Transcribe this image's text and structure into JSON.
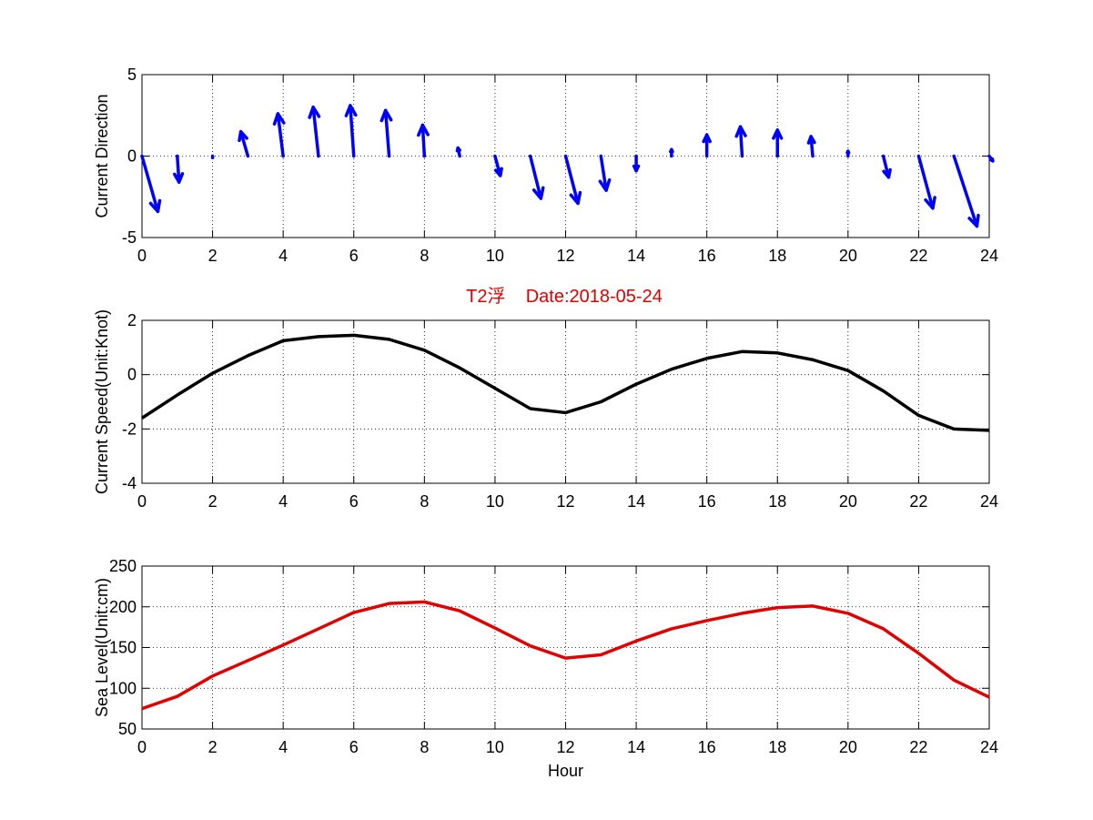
{
  "figure": {
    "title": "T2浮    Date:2018-05-24",
    "title_color": "#e00000",
    "background": "#ffffff"
  },
  "chart_data": [
    {
      "type": "quiver",
      "name": "current-direction",
      "title": "",
      "xlabel": "",
      "ylabel": "Current Direction",
      "xlim": [
        0,
        24
      ],
      "ylim": [
        -5,
        5
      ],
      "xticks": [
        "0",
        "2",
        "4",
        "6",
        "8",
        "10",
        "12",
        "14",
        "16",
        "18",
        "20",
        "22",
        "24"
      ],
      "yticks": [
        "-5",
        "0",
        "5"
      ],
      "grid": true,
      "color": "#0000ff",
      "x": [
        0,
        1,
        2,
        3,
        4,
        5,
        6,
        7,
        8,
        9,
        10,
        11,
        12,
        13,
        14,
        15,
        16,
        17,
        18,
        19,
        20,
        21,
        22,
        23,
        24
      ],
      "u": [
        0.45,
        0.05,
        0.0,
        -0.2,
        -0.15,
        -0.15,
        -0.1,
        -0.1,
        -0.05,
        -0.05,
        0.15,
        0.3,
        0.35,
        0.15,
        0.0,
        0.0,
        0.0,
        -0.05,
        0.0,
        -0.05,
        0.0,
        0.15,
        0.4,
        0.65,
        0.1
      ],
      "v": [
        -3.4,
        -1.6,
        -0.1,
        1.5,
        2.6,
        3.0,
        3.1,
        2.8,
        1.9,
        0.5,
        -1.2,
        -2.6,
        -2.9,
        -2.1,
        -0.9,
        0.4,
        1.3,
        1.8,
        1.6,
        1.2,
        0.3,
        -1.3,
        -3.2,
        -4.3,
        -0.3
      ]
    },
    {
      "type": "line",
      "name": "current-speed",
      "title": "",
      "xlabel": "",
      "ylabel": "Current Speed(Unit:Knot)",
      "xlim": [
        0,
        24
      ],
      "ylim": [
        -4,
        2
      ],
      "xticks": [
        "0",
        "2",
        "4",
        "6",
        "8",
        "10",
        "12",
        "14",
        "16",
        "18",
        "20",
        "22",
        "24"
      ],
      "yticks": [
        "-4",
        "-2",
        "0",
        "2"
      ],
      "grid": true,
      "color": "#000000",
      "series": [
        {
          "name": "speed",
          "x": [
            0,
            1,
            2,
            3,
            4,
            5,
            6,
            7,
            8,
            9,
            10,
            11,
            12,
            13,
            14,
            15,
            16,
            17,
            18,
            19,
            20,
            21,
            22,
            23,
            24
          ],
          "values": [
            -1.6,
            -0.75,
            0.05,
            0.7,
            1.25,
            1.4,
            1.45,
            1.3,
            0.9,
            0.25,
            -0.5,
            -1.25,
            -1.4,
            -1.0,
            -0.35,
            0.2,
            0.6,
            0.85,
            0.8,
            0.55,
            0.15,
            -0.6,
            -1.5,
            -2.0,
            -2.05
          ]
        }
      ]
    },
    {
      "type": "line",
      "name": "sea-level",
      "title": "",
      "xlabel": "Hour",
      "ylabel": "Sea Level(Unit:cm)",
      "xlim": [
        0,
        24
      ],
      "ylim": [
        50,
        250
      ],
      "xticks": [
        "0",
        "2",
        "4",
        "6",
        "8",
        "10",
        "12",
        "14",
        "16",
        "18",
        "20",
        "22",
        "24"
      ],
      "yticks": [
        "50",
        "100",
        "150",
        "200",
        "250"
      ],
      "grid": true,
      "color": "#e00000",
      "series": [
        {
          "name": "sea-level",
          "x": [
            0,
            1,
            2,
            3,
            4,
            5,
            6,
            7,
            8,
            9,
            10,
            11,
            12,
            13,
            14,
            15,
            16,
            17,
            18,
            19,
            20,
            21,
            22,
            23,
            24
          ],
          "values": [
            75,
            90,
            115,
            134,
            153,
            173,
            193,
            204,
            206,
            195,
            174,
            152,
            137,
            141,
            158,
            173,
            183,
            192,
            199,
            201,
            192,
            173,
            143,
            110,
            89
          ]
        }
      ]
    }
  ]
}
